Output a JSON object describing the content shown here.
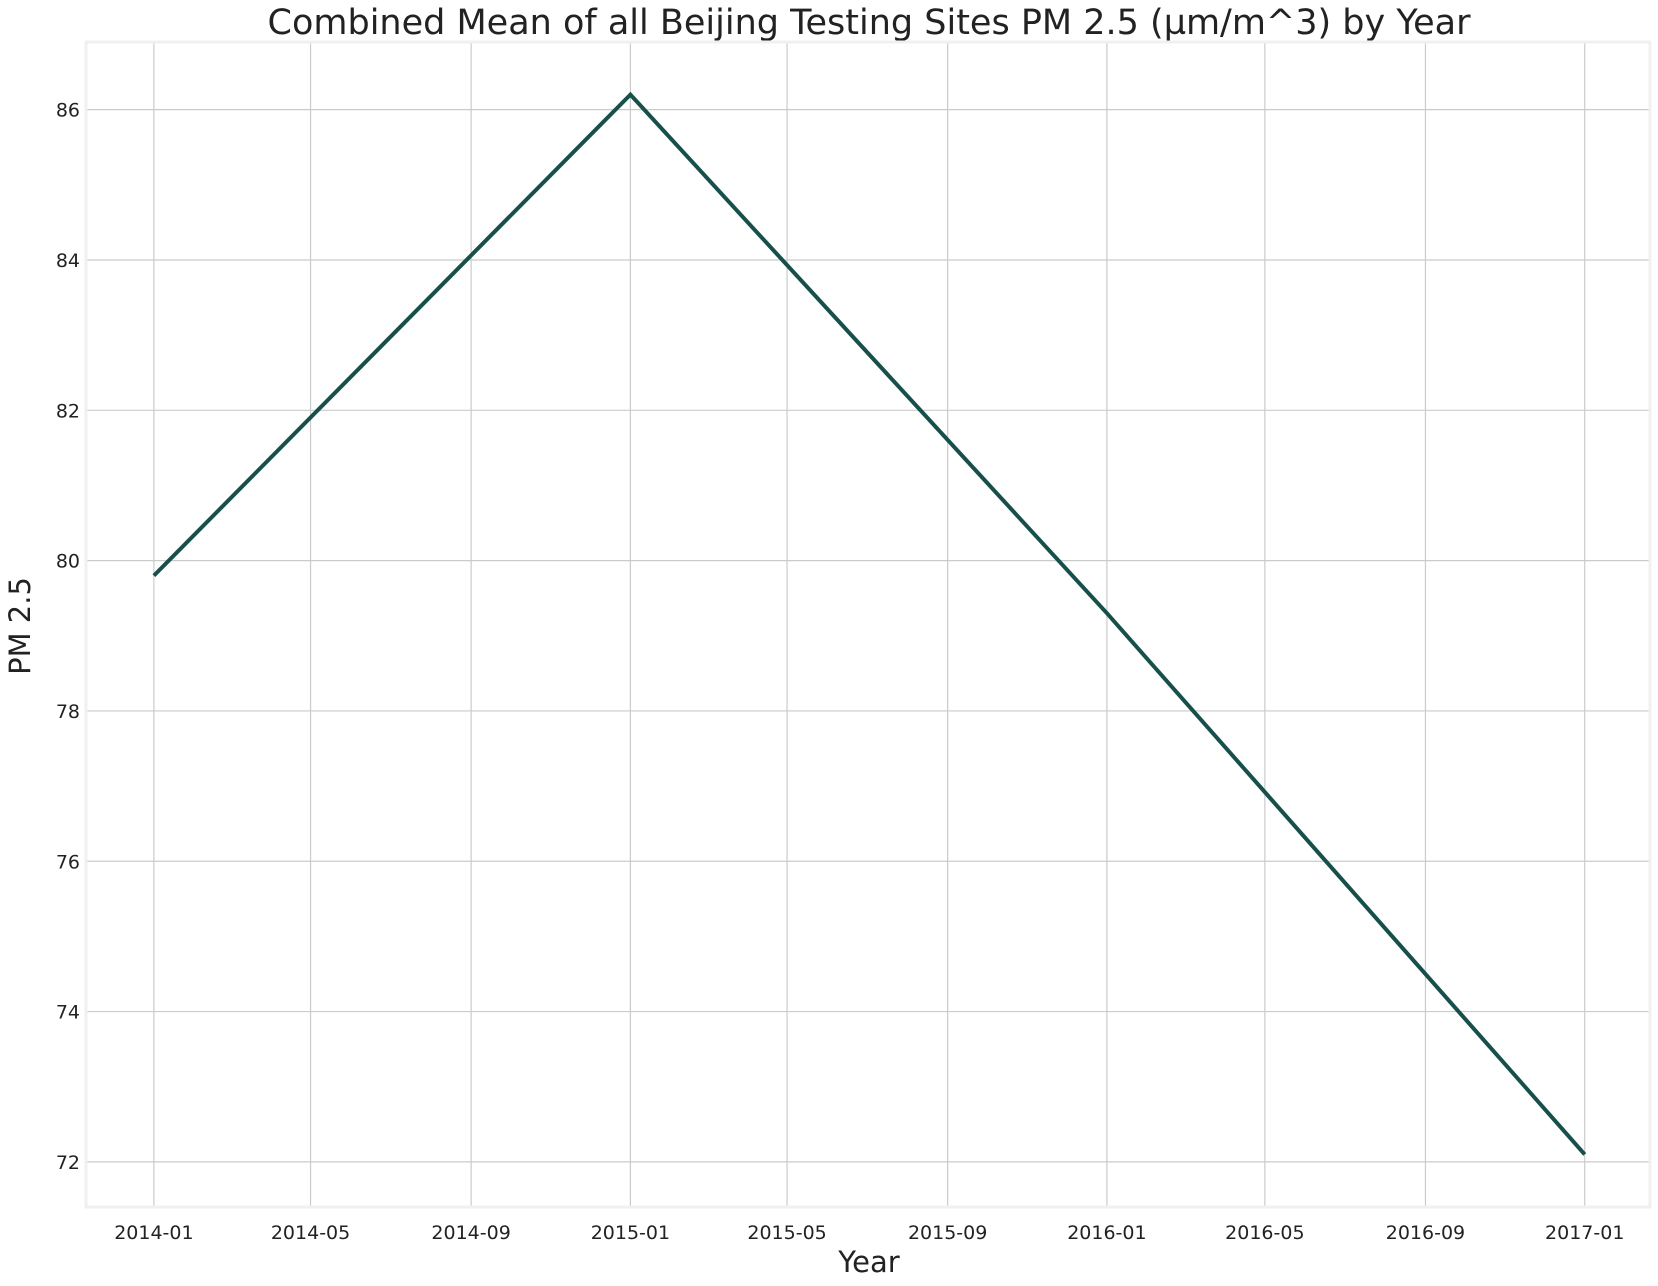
{
  "chart_data": {
    "type": "line",
    "title": "Combined Mean of all Beijing Testing Sites PM 2.5 (µm/m^3) by Year",
    "xlabel": "Year",
    "ylabel": "PM 2.5",
    "x_ticks": [
      "2014-01",
      "2014-05",
      "2014-09",
      "2015-01",
      "2015-05",
      "2015-09",
      "2016-01",
      "2016-05",
      "2016-09",
      "2017-01"
    ],
    "y_ticks": [
      72,
      74,
      76,
      78,
      80,
      82,
      84,
      86
    ],
    "xlim": [
      "2013-11-10",
      "2017-02-20"
    ],
    "ylim": [
      71.4,
      86.9
    ],
    "grid": true,
    "line_color": "#17504b",
    "series": [
      {
        "x": [
          "2014-01-01",
          "2015-01-01",
          "2016-01-01",
          "2017-01-01"
        ],
        "values": [
          79.8,
          86.2,
          79.3,
          72.1
        ]
      }
    ]
  }
}
